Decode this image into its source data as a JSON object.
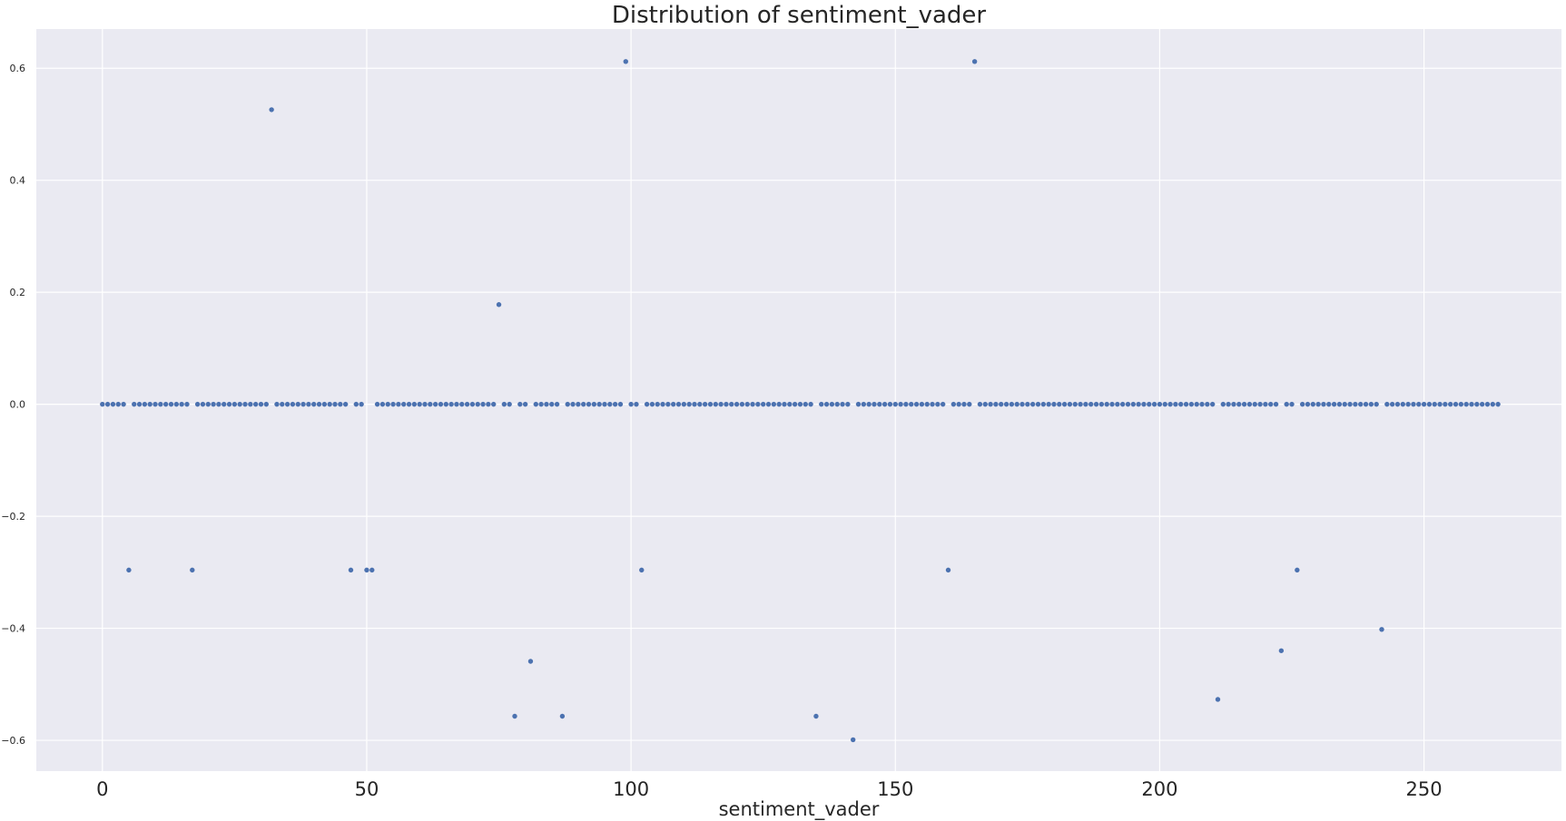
{
  "chart_data": {
    "type": "scatter",
    "title": "Distribution of sentiment_vader",
    "xlabel": "sentiment_vader",
    "ylabel": "",
    "xlim": [
      -12.5,
      276
    ],
    "ylim": [
      -0.655,
      0.67
    ],
    "xticks": [
      0,
      50,
      100,
      150,
      200,
      250
    ],
    "xtick_labels": [
      "0",
      "50",
      "100",
      "150",
      "200",
      "250"
    ],
    "yticks": [
      -0.6,
      -0.4,
      -0.2,
      0.0,
      0.2,
      0.4,
      0.6
    ],
    "ytick_labels": [
      "−0.6",
      "−0.4",
      "−0.2",
      "0.0",
      "0.2",
      "0.4",
      "0.6"
    ],
    "grid": true,
    "n_points": 265,
    "series": [
      {
        "name": "sentiment_vader",
        "color": "#4c72b0",
        "default_y": 0.0,
        "nonzero": {
          "5": -0.296,
          "17": -0.296,
          "32": 0.526,
          "47": -0.296,
          "50": -0.296,
          "51": -0.296,
          "75": 0.178,
          "78": -0.557,
          "81": -0.459,
          "87": -0.557,
          "99": 0.612,
          "102": -0.296,
          "135": -0.557,
          "142": -0.599,
          "160": -0.296,
          "165": 0.612,
          "211": -0.527,
          "223": -0.44,
          "226": -0.296,
          "242": -0.402
        }
      }
    ]
  },
  "style": {
    "background": "#eaeaf2",
    "grid_color": "#ffffff",
    "text_color": "#262626"
  }
}
